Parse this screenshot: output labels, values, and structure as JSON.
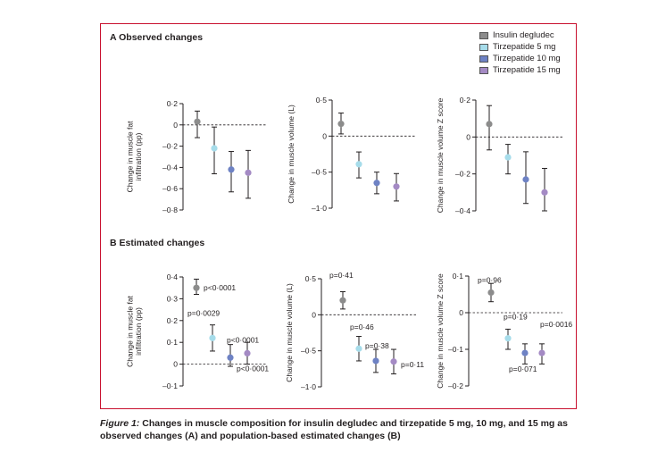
{
  "panels": {
    "a_title": "A  Observed changes",
    "b_title": "B  Estimated changes"
  },
  "legend": {
    "items": [
      {
        "label": "Insulin degludec",
        "color": "#8c8c8c"
      },
      {
        "label": "Tirzepatide 5 mg",
        "color": "#a6dcea"
      },
      {
        "label": "Tirzepatide 10 mg",
        "color": "#6e82c4"
      },
      {
        "label": "Tirzepatide 15 mg",
        "color": "#a48ac4"
      }
    ]
  },
  "caption": {
    "label": "Figure 1:",
    "text": "Changes in muscle composition for insulin degludec and tirzepatide 5 mg, 10 mg, and 15 mg as observed changes (A) and population-based estimated changes (B)"
  },
  "chart_data": [
    {
      "type": "scatter",
      "panel": "A",
      "ylabel": "Change in muscle fat infiltration (pp)",
      "ylim": [
        -0.8,
        0.2
      ],
      "ticks": [
        0.2,
        0,
        -0.2,
        -0.4,
        -0.6,
        -0.8
      ],
      "tick_labels": [
        "0·2",
        "0",
        "–0·2",
        "–0·4",
        "–0·6",
        "–0·8"
      ],
      "series": [
        {
          "name": "Insulin degludec",
          "value": 0.03,
          "low": -0.12,
          "high": 0.13
        },
        {
          "name": "Tirzepatide 5 mg",
          "value": -0.22,
          "low": -0.46,
          "high": -0.02
        },
        {
          "name": "Tirzepatide 10 mg",
          "value": -0.42,
          "low": -0.63,
          "high": -0.25
        },
        {
          "name": "Tirzepatide 15 mg",
          "value": -0.45,
          "low": -0.69,
          "high": -0.24
        }
      ]
    },
    {
      "type": "scatter",
      "panel": "A",
      "ylabel": "Change in muscle volume (L)",
      "ylim": [
        -1.0,
        0.5
      ],
      "ticks": [
        0.5,
        0,
        -0.5,
        -1.0
      ],
      "tick_labels": [
        "0·5",
        "0",
        "–0·5",
        "–1·0"
      ],
      "series": [
        {
          "name": "Insulin degludec",
          "value": 0.17,
          "low": 0.03,
          "high": 0.32
        },
        {
          "name": "Tirzepatide 5 mg",
          "value": -0.39,
          "low": -0.58,
          "high": -0.22
        },
        {
          "name": "Tirzepatide 10 mg",
          "value": -0.65,
          "low": -0.8,
          "high": -0.5
        },
        {
          "name": "Tirzepatide 15 mg",
          "value": -0.7,
          "low": -0.9,
          "high": -0.52
        }
      ]
    },
    {
      "type": "scatter",
      "panel": "A",
      "ylabel": "Change in muscle volume Z score",
      "ylim": [
        -0.4,
        0.2
      ],
      "ticks": [
        0.2,
        0,
        -0.2,
        -0.4
      ],
      "tick_labels": [
        "0·2",
        "0",
        "–0·2",
        "–0·4"
      ],
      "series": [
        {
          "name": "Insulin degludec",
          "value": 0.07,
          "low": -0.07,
          "high": 0.17
        },
        {
          "name": "Tirzepatide 5 mg",
          "value": -0.11,
          "low": -0.2,
          "high": -0.04
        },
        {
          "name": "Tirzepatide 10 mg",
          "value": -0.23,
          "low": -0.36,
          "high": -0.08
        },
        {
          "name": "Tirzepatide 15 mg",
          "value": -0.3,
          "low": -0.4,
          "high": -0.17
        }
      ]
    },
    {
      "type": "scatter",
      "panel": "B",
      "ylabel": "Change in muscle fat infiltration (pp)",
      "ylim": [
        -0.1,
        0.4
      ],
      "ticks": [
        0.4,
        0.3,
        0.2,
        0.1,
        0,
        -0.1
      ],
      "tick_labels": [
        "0·4",
        "0·3",
        "0·2",
        "0·1",
        "0",
        "–0·1"
      ],
      "series": [
        {
          "name": "Insulin degludec",
          "value": 0.35,
          "low": 0.32,
          "high": 0.39,
          "annotation": "p<0·0001"
        },
        {
          "name": "Tirzepatide 5 mg",
          "value": 0.12,
          "low": 0.06,
          "high": 0.18,
          "annotation": "p=0·0029"
        },
        {
          "name": "Tirzepatide 10 mg",
          "value": 0.03,
          "low": -0.01,
          "high": 0.09,
          "annotation": "p<0·0001"
        },
        {
          "name": "Tirzepatide 15 mg",
          "value": 0.05,
          "low": 0.0,
          "high": 0.1,
          "annotation": "p<0·0001"
        }
      ]
    },
    {
      "type": "scatter",
      "panel": "B",
      "ylabel": "Change in muscle volume (L)",
      "ylim": [
        -1.0,
        0.5
      ],
      "ticks": [
        0.5,
        0,
        -0.5,
        -1.0
      ],
      "tick_labels": [
        "0·5",
        "0",
        "–0·5",
        "–1·0"
      ],
      "series": [
        {
          "name": "Insulin degludec",
          "value": 0.2,
          "low": 0.08,
          "high": 0.32,
          "annotation": "p=0·41"
        },
        {
          "name": "Tirzepatide 5 mg",
          "value": -0.47,
          "low": -0.64,
          "high": -0.3,
          "annotation": "p=0·46"
        },
        {
          "name": "Tirzepatide 10 mg",
          "value": -0.64,
          "low": -0.8,
          "high": -0.48,
          "annotation": "p=0·38"
        },
        {
          "name": "Tirzepatide 15 mg",
          "value": -0.65,
          "low": -0.82,
          "high": -0.48,
          "annotation": "p=0·11"
        }
      ]
    },
    {
      "type": "scatter",
      "panel": "B",
      "ylabel": "Change in muscle volume Z score",
      "ylim": [
        -0.2,
        0.1
      ],
      "ticks": [
        0.1,
        0,
        -0.1,
        -0.2
      ],
      "tick_labels": [
        "0·1",
        "0",
        "–0·1",
        "–0·2"
      ],
      "series": [
        {
          "name": "Insulin degludec",
          "value": 0.055,
          "low": 0.03,
          "high": 0.08,
          "annotation": "p=0·96"
        },
        {
          "name": "Tirzepatide 5 mg",
          "value": -0.07,
          "low": -0.1,
          "high": -0.045,
          "annotation": "p=0·19"
        },
        {
          "name": "Tirzepatide 10 mg",
          "value": -0.11,
          "low": -0.14,
          "high": -0.085,
          "annotation": "p=0·071"
        },
        {
          "name": "Tirzepatide 15 mg",
          "value": -0.11,
          "low": -0.14,
          "high": -0.085,
          "annotation": "p=0·0016"
        }
      ]
    }
  ]
}
